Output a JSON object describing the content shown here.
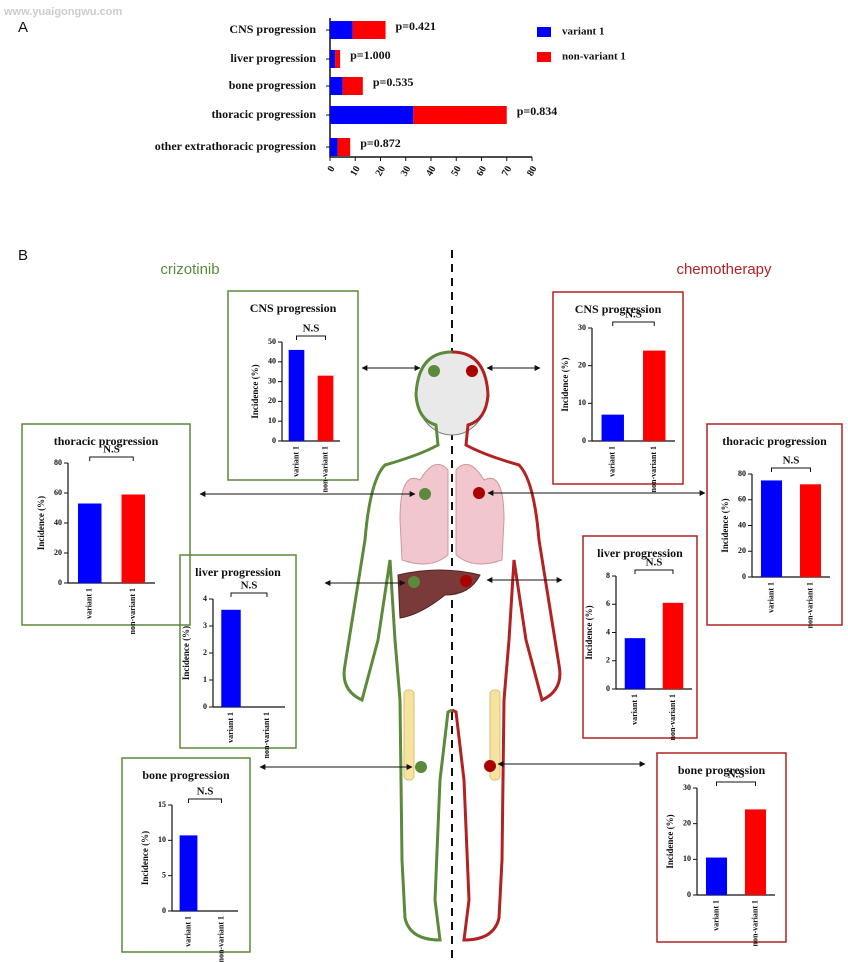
{
  "watermark": "www.yuaigongwu.com",
  "panel_labels": [
    "A",
    "B"
  ],
  "group_labels": [
    {
      "text": "crizotinib",
      "color": "#5a8a3a"
    },
    {
      "text": "chemotherapy",
      "color": "#b22222"
    }
  ],
  "chart_data": [
    {
      "type": "hbar_stacked",
      "categories": [
        "CNS progression",
        "liver progression",
        "bone progression",
        "thoracic progression",
        "other extrathoracic progression"
      ],
      "series": [
        {
          "name": "variant 1",
          "color": "#0000ff",
          "values": [
            9,
            2,
            5,
            33,
            3
          ]
        },
        {
          "name": "non-variant 1",
          "color": "#ff0000",
          "values": [
            13,
            2,
            8,
            37,
            5
          ]
        }
      ],
      "value_annotations": [
        "p=0.421",
        "p=1.000",
        "p=0.535",
        "p=0.834",
        "p=0.872"
      ],
      "xlim": [
        0,
        80
      ],
      "xticks": [
        0,
        10,
        20,
        30,
        40,
        50,
        60,
        70,
        80
      ],
      "legend": "upper right"
    },
    {
      "type": "bar",
      "title": "CNS progression",
      "ylabel": "Incidence (%)",
      "categories": [
        "variant 1",
        "non-variant 1"
      ],
      "values": [
        46,
        33
      ],
      "colors": [
        "#0000ff",
        "#ff0000"
      ],
      "annotation": "N.S",
      "ylim": [
        0,
        50
      ],
      "yticks": [
        0,
        10,
        20,
        30,
        40,
        50
      ],
      "frame_color": "#5a8a3a"
    },
    {
      "type": "bar",
      "title": "thoracic progression",
      "ylabel": "Incidence (%)",
      "categories": [
        "variant 1",
        "non-variant 1"
      ],
      "values": [
        53,
        59
      ],
      "colors": [
        "#0000ff",
        "#ff0000"
      ],
      "annotation": "N.S",
      "ylim": [
        0,
        80
      ],
      "yticks": [
        0,
        20,
        40,
        60,
        80
      ],
      "frame_color": "#5a8a3a"
    },
    {
      "type": "bar",
      "title": "liver progression",
      "ylabel": "Incidence (%)",
      "categories": [
        "variant 1",
        "non-variant 1"
      ],
      "values": [
        3.6,
        0
      ],
      "colors": [
        "#0000ff",
        "#ff0000"
      ],
      "annotation": "N.S",
      "ylim": [
        0,
        4
      ],
      "yticks": [
        0,
        1,
        2,
        3,
        4
      ],
      "frame_color": "#5a8a3a"
    },
    {
      "type": "bar",
      "title": "bone progression",
      "ylabel": "Incidence (%)",
      "categories": [
        "variant 1",
        "non-variant 1"
      ],
      "values": [
        10.7,
        0
      ],
      "colors": [
        "#0000ff",
        "#ff0000"
      ],
      "annotation": "N.S",
      "ylim": [
        0,
        15
      ],
      "yticks": [
        0,
        5,
        10,
        15
      ],
      "frame_color": "#5a8a3a"
    },
    {
      "type": "bar",
      "title": "CNS progression",
      "ylabel": "Incidence (%)",
      "categories": [
        "variant 1",
        "non-variant 1"
      ],
      "values": [
        7,
        24
      ],
      "colors": [
        "#0000ff",
        "#ff0000"
      ],
      "annotation": "N.S",
      "ylim": [
        0,
        30
      ],
      "yticks": [
        0,
        10,
        20,
        30
      ],
      "frame_color": "#b22222"
    },
    {
      "type": "bar",
      "title": "thoracic progression",
      "ylabel": "Incidence (%)",
      "categories": [
        "variant 1",
        "non-variant 1"
      ],
      "values": [
        75,
        72
      ],
      "colors": [
        "#0000ff",
        "#ff0000"
      ],
      "annotation": "N.S",
      "ylim": [
        0,
        80
      ],
      "yticks": [
        0,
        20,
        40,
        60,
        80
      ],
      "frame_color": "#b22222"
    },
    {
      "type": "bar",
      "title": "liver progression",
      "ylabel": "Incidence (%)",
      "categories": [
        "variant 1",
        "non-variant 1"
      ],
      "values": [
        3.6,
        6.1
      ],
      "colors": [
        "#0000ff",
        "#ff0000"
      ],
      "annotation": "N.S",
      "ylim": [
        0,
        8
      ],
      "yticks": [
        0,
        2,
        4,
        6,
        8
      ],
      "frame_color": "#b22222"
    },
    {
      "type": "bar",
      "title": "bone progression",
      "ylabel": "Incidence (%)",
      "categories": [
        "variant 1",
        "non-variant 1"
      ],
      "values": [
        10.5,
        24
      ],
      "colors": [
        "#0000ff",
        "#ff0000"
      ],
      "annotation": "N.S",
      "ylim": [
        0,
        30
      ],
      "yticks": [
        0,
        10,
        20,
        30
      ],
      "frame_color": "#b22222"
    }
  ]
}
